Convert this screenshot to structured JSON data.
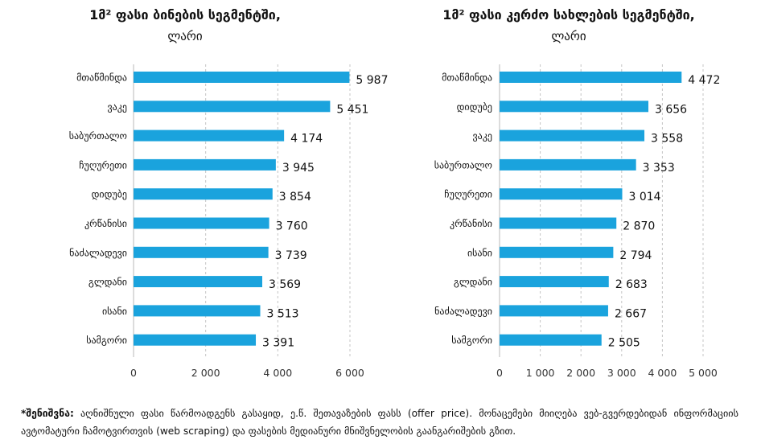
{
  "chart_data": [
    {
      "type": "bar",
      "orientation": "horizontal",
      "title": "1მ² ფასი ბინების სეგმენტში,",
      "subtitle": "ლარი",
      "categories": [
        "მთაწმინდა",
        "ვაკე",
        "საბურთალო",
        "ჩუღურეთი",
        "დიდუბე",
        "კრწანისი",
        "ნაძალადევი",
        "გლდანი",
        "ისანი",
        "სამგორი"
      ],
      "values": [
        5987,
        5451,
        4174,
        3945,
        3854,
        3760,
        3739,
        3569,
        3513,
        3391
      ],
      "value_labels": [
        "5 987",
        "5 451",
        "4 174",
        "3 945",
        "3 854",
        "3 760",
        "3 739",
        "3 569",
        "3 513",
        "3 391"
      ],
      "xlim": [
        0,
        6000
      ],
      "xticks": [
        0,
        2000,
        4000,
        6000
      ],
      "xtick_labels": [
        "0",
        "2 000",
        "4 000",
        "6 000"
      ],
      "grid": "vertical dashed",
      "color": "#1aa3dd"
    },
    {
      "type": "bar",
      "orientation": "horizontal",
      "title": "1მ² ფასი კერძო სახლების სეგმენტში,",
      "subtitle": "ლარი",
      "categories": [
        "მთაწმინდა",
        "დიდუბე",
        "ვაკე",
        "საბურთალო",
        "ჩუღურეთი",
        "კრწანისი",
        "ისანი",
        "გლდანი",
        "ნაძალადევი",
        "სამგორი"
      ],
      "values": [
        4472,
        3656,
        3558,
        3353,
        3014,
        2870,
        2794,
        2683,
        2667,
        2505
      ],
      "value_labels": [
        "4 472",
        "3 656",
        "3 558",
        "3 353",
        "3 014",
        "2 870",
        "2 794",
        "2 683",
        "2 667",
        "2 505"
      ],
      "xlim": [
        0,
        5000
      ],
      "xticks": [
        0,
        1000,
        2000,
        3000,
        4000,
        5000
      ],
      "xtick_labels": [
        "0",
        "1 000",
        "2 000",
        "3 000",
        "4 000",
        "5 000"
      ],
      "grid": "vertical dashed",
      "color": "#1aa3dd"
    }
  ],
  "note": {
    "label": "*შენიშვნა:",
    "text": " აღნიშნული ფასი წარმოადგენს გასაყიდ, ე.წ. შეთავაზების ფასს (offer price). მონაცემები მიიღება ვებ-გვერდებიდან ინფორმაციის ავტომატური ჩამოტვირთვის (web scraping) და ფასების მედიანური მნიშვნელობის გაანგარიშების გზით."
  }
}
